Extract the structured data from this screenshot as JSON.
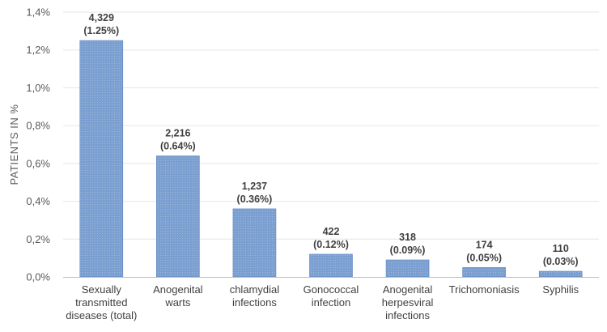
{
  "colors": {
    "bar": "#7b9fd0",
    "bar_hatch": "#9bb8de",
    "bar_edge": "#5b83bf",
    "grid": "#e6e6e6",
    "text": "#404040"
  },
  "chart_data": {
    "type": "bar",
    "title": "",
    "xlabel": "",
    "ylabel": "PATIENTS IN %",
    "ylim": [
      0,
      1.4
    ],
    "ytick_step": 0.2,
    "ytick_labels": [
      "0,0%",
      "0,2%",
      "0,4%",
      "0,6%",
      "0,8%",
      "1,0%",
      "1,2%",
      "1,4%"
    ],
    "grid": true,
    "categories": [
      [
        "Sexually",
        "transmitted",
        "diseases (total)"
      ],
      [
        "Anogenital",
        "warts"
      ],
      [
        "chlamydial",
        "infections"
      ],
      [
        "Gonococcal",
        "infection"
      ],
      [
        "Anogenital",
        "herpesviral",
        "infections"
      ],
      [
        "Trichomoniasis"
      ],
      [
        "Syphilis"
      ]
    ],
    "values": [
      1.25,
      0.64,
      0.36,
      0.12,
      0.09,
      0.05,
      0.03
    ],
    "counts": [
      "4,329",
      "2,216",
      "1,237",
      "422",
      "318",
      "174",
      "110"
    ],
    "percent_labels": [
      "(1.25%)",
      "(0.64%)",
      "(0.36%)",
      "(0.12%)",
      "(0.09%)",
      "(0.05%)",
      "(0.03%)"
    ]
  }
}
